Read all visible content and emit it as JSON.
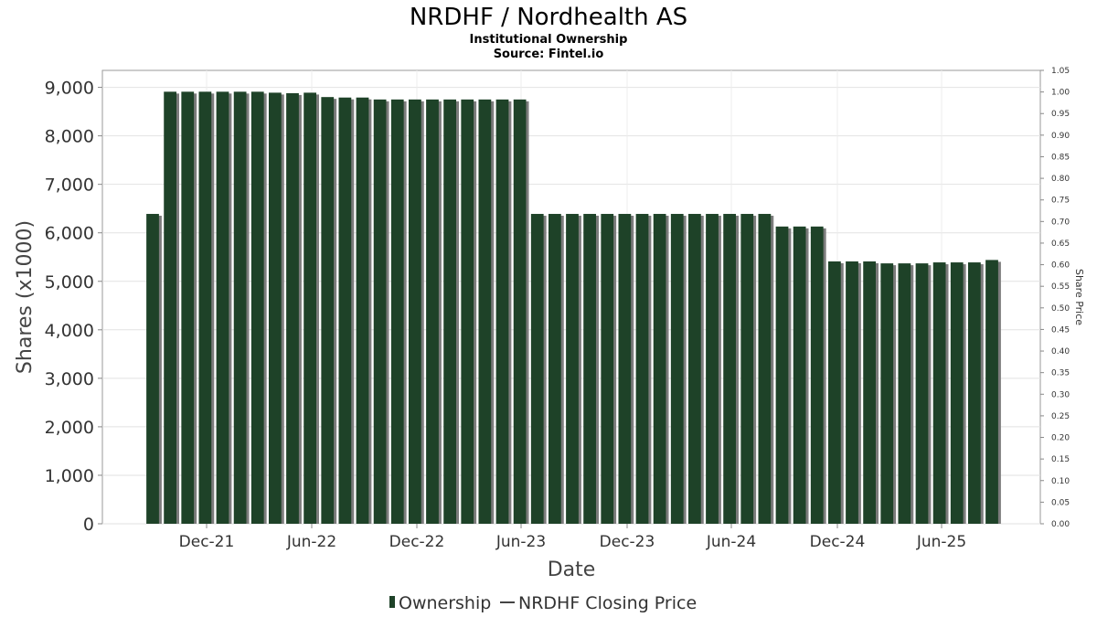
{
  "chart_data": {
    "type": "bar",
    "title": "NRDHF / Nordhealth AS",
    "subtitle": "Institutional Ownership",
    "source": "Source: Fintel.io",
    "xlabel": "Date",
    "ylabel": "Shares (x1000)",
    "y2label": "Share Price",
    "ylim": [
      0,
      9350
    ],
    "y2lim": [
      0,
      1.05
    ],
    "yticks": [
      "0",
      "1,000",
      "2,000",
      "3,000",
      "4,000",
      "5,000",
      "6,000",
      "7,000",
      "8,000",
      "9,000"
    ],
    "y2ticks": [
      "0.00",
      "0.05",
      "0.10",
      "0.15",
      "0.20",
      "0.25",
      "0.30",
      "0.35",
      "0.40",
      "0.45",
      "0.50",
      "0.55",
      "0.60",
      "0.65",
      "0.70",
      "0.75",
      "0.80",
      "0.85",
      "0.90",
      "0.95",
      "1.00",
      "1.05"
    ],
    "xticks": [
      "Dec-21",
      "Jun-22",
      "Dec-22",
      "Jun-23",
      "Dec-23",
      "Jun-24",
      "Dec-24",
      "Jun-25"
    ],
    "grid": true,
    "legend_position": "bottom",
    "series": [
      {
        "name": "Ownership",
        "color": "#1e4228",
        "values": [
          6390,
          8910,
          8910,
          8910,
          8910,
          8910,
          8910,
          8890,
          8880,
          8890,
          8800,
          8790,
          8790,
          8750,
          8750,
          8750,
          8750,
          8750,
          8750,
          8750,
          8750,
          8750,
          6390,
          6390,
          6390,
          6390,
          6390,
          6390,
          6390,
          6390,
          6390,
          6390,
          6390,
          6390,
          6390,
          6390,
          6130,
          6130,
          6130,
          5410,
          5410,
          5410,
          5370,
          5370,
          5370,
          5390,
          5390,
          5390,
          5440
        ]
      },
      {
        "name": "NRDHF Closing Price",
        "color": "#444444",
        "values": []
      }
    ]
  }
}
